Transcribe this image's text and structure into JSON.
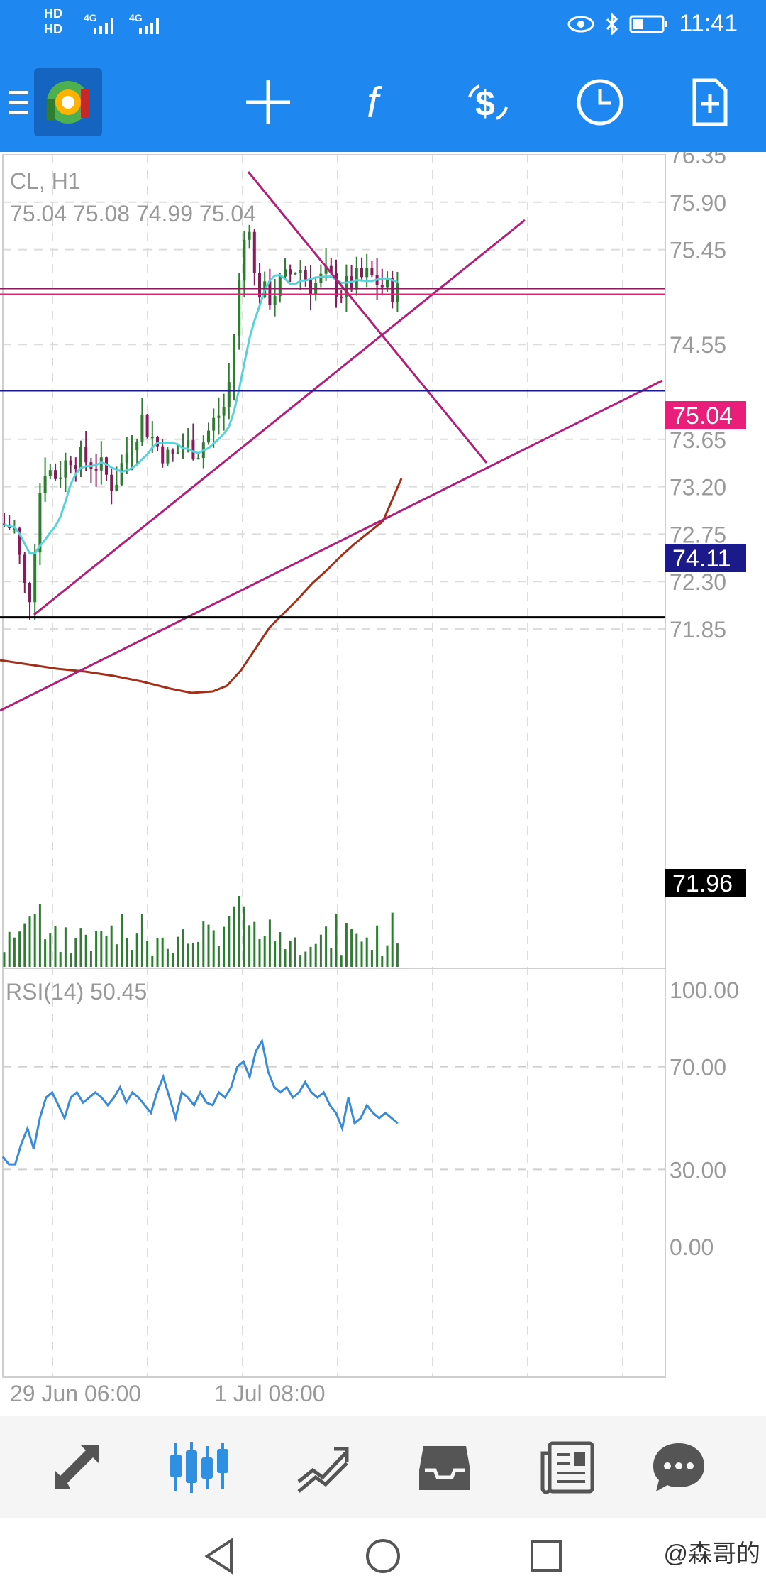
{
  "status_bar": {
    "left_top": "HD",
    "left_bottom": "HD",
    "net1": "4G",
    "net2": "4G",
    "time": "11:41"
  },
  "toolbar": {
    "icons": [
      "menu-icon",
      "app-logo",
      "crosshair-icon",
      "indicators-icon",
      "trade-icon",
      "timeframe-icon",
      "new-order-icon"
    ],
    "indicator_glyph": "f"
  },
  "chart": {
    "symbol_tf": "CL, H1",
    "ohlc": "75.04 75.08 74.99 75.04",
    "price_axis": [
      "76.35",
      "75.90",
      "75.45",
      "74.55",
      "73.65",
      "73.20",
      "72.75",
      "72.30",
      "71.85"
    ],
    "price_tags": {
      "current": "75.04",
      "blue_line": "74.11",
      "black_line": "71.96"
    },
    "colors": {
      "bull": "#2e7d32",
      "bear": "#8b1a5a",
      "trend_line": "#b0207a",
      "fast_ma": "#5ad1d8",
      "slow_ma": "#a0301a",
      "blue_line": "#1a1a8a",
      "black_line": "#000000",
      "current_tag": "#e91e7a"
    }
  },
  "rsi": {
    "label": "RSI(14) 50.45",
    "axis": [
      "100.00",
      "70.00",
      "30.00",
      "0.00"
    ],
    "color": "#3a8ad6"
  },
  "time_axis": [
    "29 Jun 06:00",
    "1 Jul 08:00"
  ],
  "bottom_nav": [
    "quotes-icon",
    "chart-icon",
    "trade-icon",
    "history-icon",
    "news-icon",
    "chat-icon"
  ],
  "watermark": "@森哥的"
}
